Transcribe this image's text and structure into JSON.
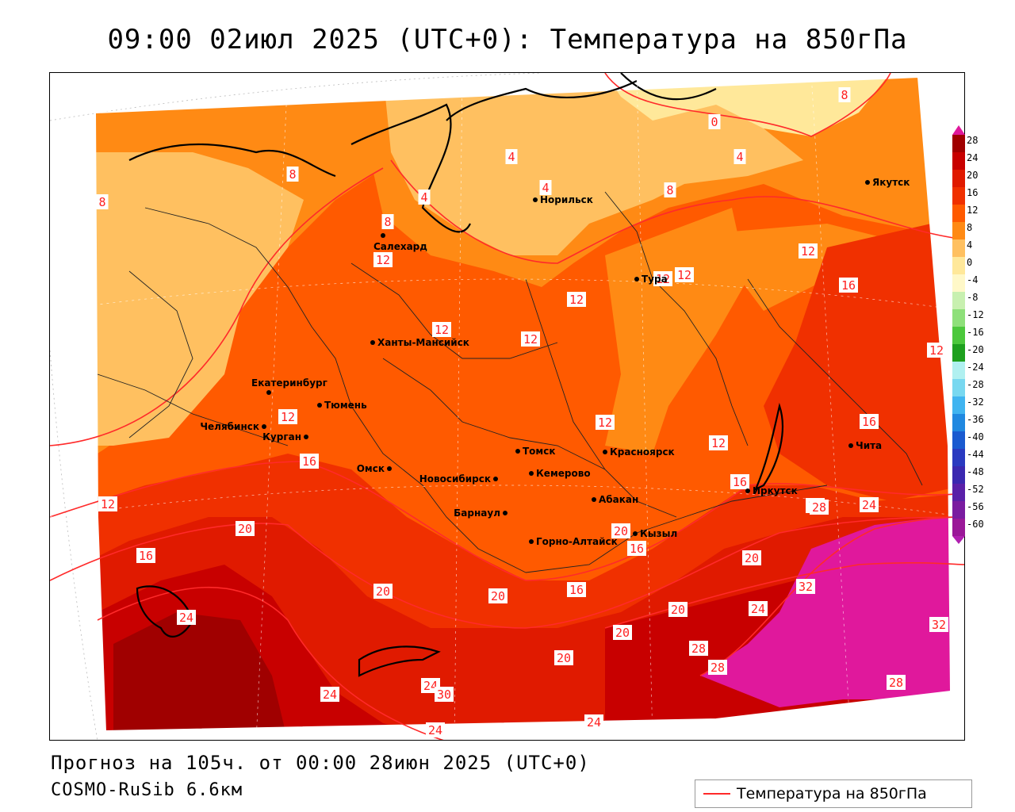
{
  "title": "09:00 02июл 2025 (UTC+0): Температура на 850гПа",
  "forecast_line": "Прогноз на 105ч. от 00:00 28июн 2025 (UTC+0)",
  "model_line": "COSMO-RuSib 6.6км",
  "legend": {
    "label": "Температура на 850гПа",
    "color": "#ff2a2a"
  },
  "colorbar": {
    "levels": [
      {
        "value": "28",
        "color": "#a00000"
      },
      {
        "value": "24",
        "color": "#c80000"
      },
      {
        "value": "20",
        "color": "#e01a00"
      },
      {
        "value": "16",
        "color": "#f03000"
      },
      {
        "value": "12",
        "color": "#ff5a00"
      },
      {
        "value": "8",
        "color": "#ff8a14"
      },
      {
        "value": "4",
        "color": "#ffc060"
      },
      {
        "value": "0",
        "color": "#ffe89a"
      },
      {
        "value": "-4",
        "color": "#fff8c8"
      },
      {
        "value": "-8",
        "color": "#c8f0b0"
      },
      {
        "value": "-12",
        "color": "#8ee07a"
      },
      {
        "value": "-16",
        "color": "#4cc83c"
      },
      {
        "value": "-20",
        "color": "#1ea01e"
      },
      {
        "value": "-24",
        "color": "#b0f0f0"
      },
      {
        "value": "-28",
        "color": "#78d8f0"
      },
      {
        "value": "-32",
        "color": "#40b4f0"
      },
      {
        "value": "-36",
        "color": "#2088e0"
      },
      {
        "value": "-40",
        "color": "#1a5ad0"
      },
      {
        "value": "-44",
        "color": "#2a3ac0"
      },
      {
        "value": "-48",
        "color": "#3a28b0"
      },
      {
        "value": "-52",
        "color": "#5a20a8"
      },
      {
        "value": "-56",
        "color": "#7a1ca0"
      },
      {
        "value": "-60",
        "color": "#9a1898"
      }
    ],
    "top_color": "#e0189c",
    "bottom_color": "#b020b0"
  },
  "cities": [
    {
      "name": "Норильск"
    },
    {
      "name": "Якутск"
    },
    {
      "name": "Салехард"
    },
    {
      "name": "Тура"
    },
    {
      "name": "Ханты-Мансийск"
    },
    {
      "name": "Екатеринбург"
    },
    {
      "name": "Тюмень"
    },
    {
      "name": "Челябинск"
    },
    {
      "name": "Курган"
    },
    {
      "name": "Омск"
    },
    {
      "name": "Новосибирск"
    },
    {
      "name": "Томск"
    },
    {
      "name": "Кемерово"
    },
    {
      "name": "Красноярск"
    },
    {
      "name": "Барнаул"
    },
    {
      "name": "Абакан"
    },
    {
      "name": "Горно-Алтайск"
    },
    {
      "name": "Кызыл"
    },
    {
      "name": "Иркутск"
    },
    {
      "name": "Чита"
    }
  ],
  "isotherm_labels": [
    "0",
    "4",
    "4",
    "4",
    "4",
    "8",
    "8",
    "8",
    "8",
    "8",
    "12",
    "12",
    "12",
    "12",
    "12",
    "12",
    "12",
    "12",
    "12",
    "12",
    "12",
    "12",
    "16",
    "16",
    "16",
    "16",
    "16",
    "16",
    "16",
    "16",
    "20",
    "20",
    "20",
    "20",
    "20",
    "20",
    "20",
    "20",
    "24",
    "24",
    "24",
    "24",
    "24",
    "24",
    "24",
    "28",
    "28",
    "28",
    "28",
    "32",
    "32",
    "30"
  ]
}
